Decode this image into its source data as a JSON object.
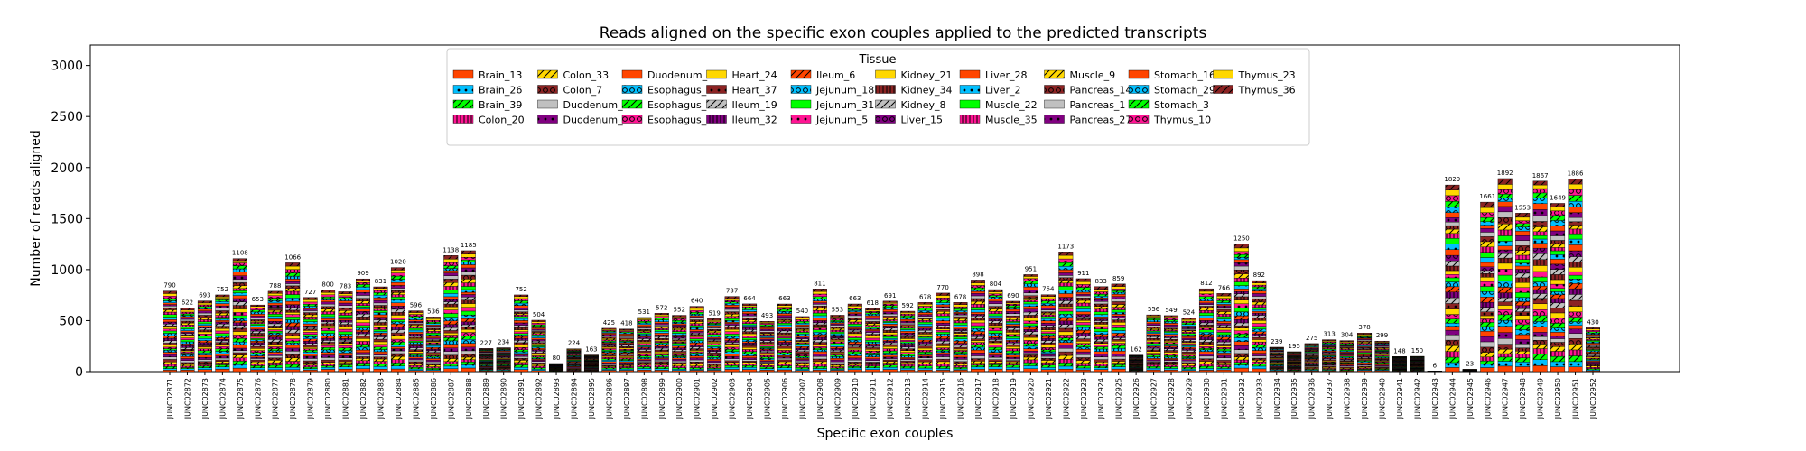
{
  "chart_data": {
    "type": "bar",
    "stacked": true,
    "title": "Reads aligned on the specific exon couples applied to the predicted transcripts",
    "xlabel": "Specific exon couples",
    "ylabel": "Number of reads aligned",
    "ylim": [
      0,
      3200
    ],
    "yticks": [
      0,
      500,
      1000,
      1500,
      2000,
      2500,
      3000
    ],
    "grid": false,
    "legend": {
      "title": "Tissue",
      "placement": "top-center",
      "columns": 10
    },
    "categories": [
      "JUNC02871",
      "JUNC02872",
      "JUNC02873",
      "JUNC02874",
      "JUNC02875",
      "JUNC02876",
      "JUNC02877",
      "JUNC02878",
      "JUNC02879",
      "JUNC02880",
      "JUNC02881",
      "JUNC02882",
      "JUNC02883",
      "JUNC02884",
      "JUNC02885",
      "JUNC02886",
      "JUNC02887",
      "JUNC02888",
      "JUNC02889",
      "JUNC02890",
      "JUNC02891",
      "JUNC02892",
      "JUNC02893",
      "JUNC02894",
      "JUNC02895",
      "JUNC02896",
      "JUNC02897",
      "JUNC02898",
      "JUNC02899",
      "JUNC02900",
      "JUNC02901",
      "JUNC02902",
      "JUNC02903",
      "JUNC02904",
      "JUNC02905",
      "JUNC02906",
      "JUNC02907",
      "JUNC02908",
      "JUNC02909",
      "JUNC02910",
      "JUNC02911",
      "JUNC02912",
      "JUNC02913",
      "JUNC02914",
      "JUNC02915",
      "JUNC02916",
      "JUNC02917",
      "JUNC02918",
      "JUNC02919",
      "JUNC02920",
      "JUNC02921",
      "JUNC02922",
      "JUNC02923",
      "JUNC02924",
      "JUNC02925",
      "JUNC02926",
      "JUNC02927",
      "JUNC02928",
      "JUNC02929",
      "JUNC02930",
      "JUNC02931",
      "JUNC02932",
      "JUNC02933",
      "JUNC02934",
      "JUNC02935",
      "JUNC02936",
      "JUNC02937",
      "JUNC02938",
      "JUNC02939",
      "JUNC02940",
      "JUNC02941",
      "JUNC02942",
      "JUNC02943",
      "JUNC02944",
      "JUNC02945",
      "JUNC02946",
      "JUNC02947",
      "JUNC02948",
      "JUNC02949",
      "JUNC02950",
      "JUNC02951",
      "JUNC02952"
    ],
    "totals": [
      790,
      622,
      693,
      752,
      1108,
      653,
      788,
      1066,
      727,
      800,
      783,
      909,
      831,
      1020,
      596,
      536,
      1138,
      1185,
      227,
      234,
      752,
      504,
      80,
      224,
      163,
      425,
      418,
      531,
      572,
      552,
      640,
      519,
      737,
      664,
      493,
      663,
      540,
      811,
      553,
      663,
      618,
      691,
      592,
      678,
      770,
      678,
      898,
      804,
      690,
      951,
      754,
      1173,
      911,
      833,
      859,
      162,
      556,
      549,
      524,
      812,
      766,
      1250,
      892,
      239,
      195,
      275,
      313,
      304,
      378,
      299,
      148,
      150,
      6,
      1829,
      23,
      1661,
      1892,
      1553,
      1867,
      1649,
      1886,
      430
    ],
    "series": [
      {
        "name": "Brain_13",
        "color": "#ff4500",
        "hatch": ""
      },
      {
        "name": "Brain_26",
        "color": "#00bfff",
        "hatch": "dots"
      },
      {
        "name": "Brain_39",
        "color": "#00ff00",
        "hatch": "slash"
      },
      {
        "name": "Colon_20",
        "color": "#ff1493",
        "hatch": "bars"
      },
      {
        "name": "Colon_33",
        "color": "#ffd700",
        "hatch": "slash"
      },
      {
        "name": "Colon_7",
        "color": "#8b2323",
        "hatch": "rings"
      },
      {
        "name": "Duodenum_17",
        "color": "#c0c0c0",
        "hatch": ""
      },
      {
        "name": "Duodenum_30",
        "color": "#800080",
        "hatch": "dots"
      },
      {
        "name": "Duodenum_4",
        "color": "#ff4500",
        "hatch": ""
      },
      {
        "name": "Esophagus_12",
        "color": "#00bfff",
        "hatch": "rings"
      },
      {
        "name": "Esophagus_25",
        "color": "#00ff00",
        "hatch": "slash"
      },
      {
        "name": "Esophagus_38",
        "color": "#ff1493",
        "hatch": "rings"
      },
      {
        "name": "Heart_24",
        "color": "#ffd700",
        "hatch": ""
      },
      {
        "name": "Heart_37",
        "color": "#8b2323",
        "hatch": "dots"
      },
      {
        "name": "Ileum_19",
        "color": "#c0c0c0",
        "hatch": "slash"
      },
      {
        "name": "Ileum_32",
        "color": "#800080",
        "hatch": "bars"
      },
      {
        "name": "Ileum_6",
        "color": "#ff4500",
        "hatch": "slash"
      },
      {
        "name": "Jejunum_18",
        "color": "#00bfff",
        "hatch": "rings"
      },
      {
        "name": "Jejunum_31",
        "color": "#00ff00",
        "hatch": ""
      },
      {
        "name": "Jejunum_5",
        "color": "#ff1493",
        "hatch": "dots"
      },
      {
        "name": "Kidney_21",
        "color": "#ffd700",
        "hatch": ""
      },
      {
        "name": "Kidney_34",
        "color": "#8b2323",
        "hatch": "bars"
      },
      {
        "name": "Kidney_8",
        "color": "#c0c0c0",
        "hatch": "slash"
      },
      {
        "name": "Liver_15",
        "color": "#800080",
        "hatch": "rings"
      },
      {
        "name": "Liver_28",
        "color": "#ff4500",
        "hatch": ""
      },
      {
        "name": "Liver_2",
        "color": "#00bfff",
        "hatch": "dots"
      },
      {
        "name": "Muscle_22",
        "color": "#00ff00",
        "hatch": ""
      },
      {
        "name": "Muscle_35",
        "color": "#ff1493",
        "hatch": "bars"
      },
      {
        "name": "Muscle_9",
        "color": "#ffd700",
        "hatch": "slash"
      },
      {
        "name": "Pancreas_14",
        "color": "#8b2323",
        "hatch": "rings"
      },
      {
        "name": "Pancreas_1",
        "color": "#c0c0c0",
        "hatch": ""
      },
      {
        "name": "Pancreas_27",
        "color": "#800080",
        "hatch": "dots"
      },
      {
        "name": "Stomach_16",
        "color": "#ff4500",
        "hatch": ""
      },
      {
        "name": "Stomach_29",
        "color": "#00bfff",
        "hatch": "rings"
      },
      {
        "name": "Stomach_3",
        "color": "#00ff00",
        "hatch": "slash"
      },
      {
        "name": "Thymus_10",
        "color": "#ff1493",
        "hatch": "rings"
      },
      {
        "name": "Thymus_23",
        "color": "#ffd700",
        "hatch": ""
      },
      {
        "name": "Thymus_36",
        "color": "#8b2323",
        "hatch": "slash"
      }
    ]
  }
}
